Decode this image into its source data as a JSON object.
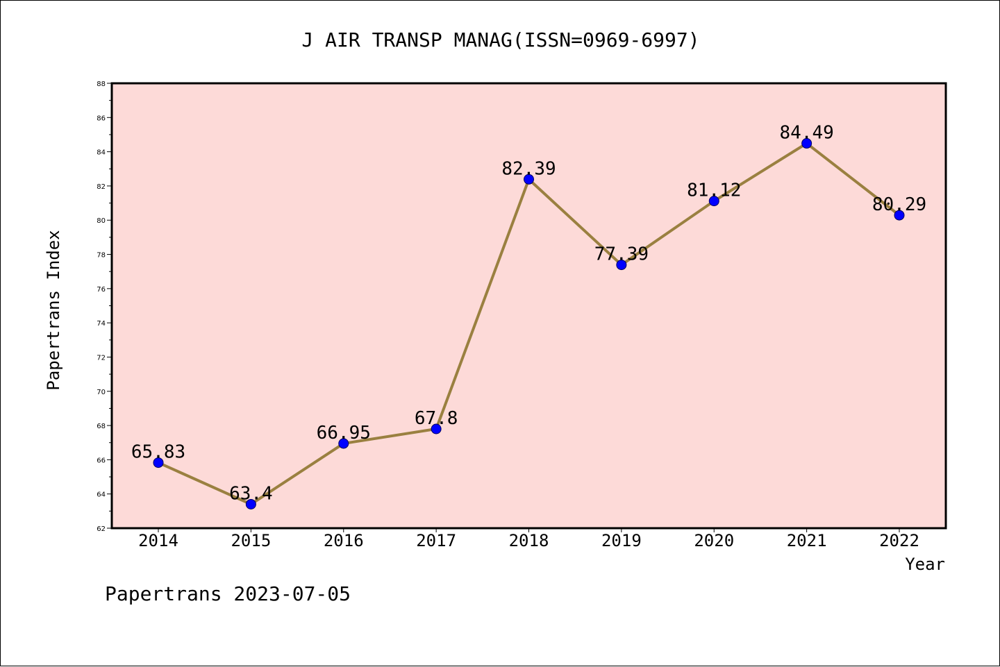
{
  "chart_data": {
    "type": "line",
    "title": "J AIR TRANSP MANAG(ISSN=0969-6997)",
    "xlabel": "Year",
    "ylabel": "Papertrans Index",
    "categories": [
      "2014",
      "2015",
      "2016",
      "2017",
      "2018",
      "2019",
      "2020",
      "2021",
      "2022"
    ],
    "values": [
      65.83,
      63.4,
      66.95,
      67.8,
      82.39,
      77.39,
      81.12,
      84.49,
      80.29
    ],
    "data_labels": [
      "65.83",
      "63.4",
      "66.95",
      "67.8",
      "82.39",
      "77.39",
      "81.12",
      "84.49",
      "80.29"
    ],
    "ylim": [
      62,
      88
    ],
    "y_ticks": [
      "62",
      "64",
      "66",
      "68",
      "70",
      "72",
      "74",
      "76",
      "78",
      "80",
      "82",
      "84",
      "86",
      "88"
    ],
    "grid": false,
    "legend": "none",
    "colors": {
      "plot_background": "#fddad8",
      "line": "#9a8040",
      "marker": "#0000ff"
    }
  },
  "footer": {
    "text": "Papertrans 2023-07-05"
  }
}
